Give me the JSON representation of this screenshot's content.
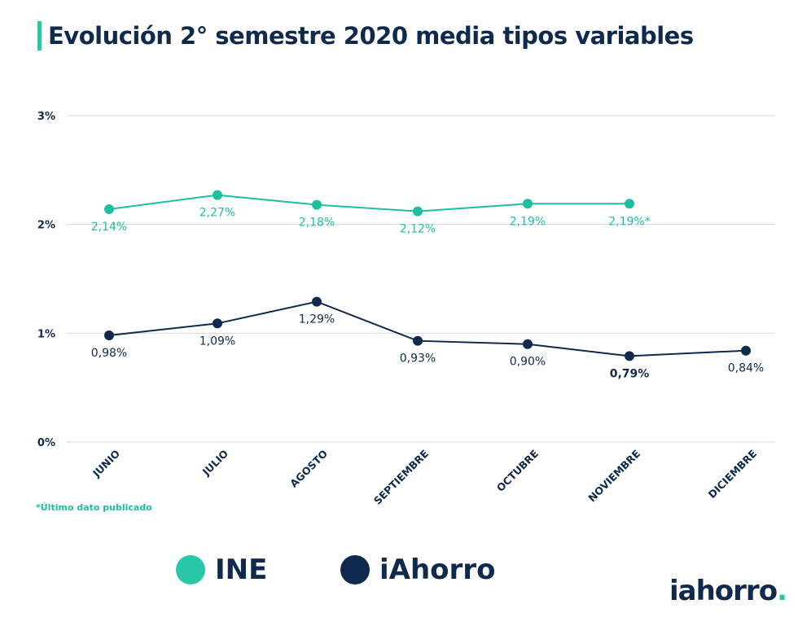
{
  "chart_data": {
    "type": "line",
    "title": "Evolución 2° semestre 2020 media tipos variables",
    "categories": [
      "JUNIO",
      "JULIO",
      "AGOSTO",
      "SEPTIEMBRE",
      "OCTUBRE",
      "NOVIEMBRE",
      "DICIEMBRE"
    ],
    "yticks": [
      "0%",
      "1%",
      "2%",
      "3%"
    ],
    "ylim": [
      0,
      3
    ],
    "grid": true,
    "legend_position": "bottom",
    "series": [
      {
        "name": "INE",
        "color": "#1dbf9f",
        "values": [
          2.14,
          2.27,
          2.18,
          2.12,
          2.19,
          2.19,
          null
        ],
        "labels": [
          "2,14%",
          "2,27%",
          "2,18%",
          "2,12%",
          "2,19%",
          "2,19%*",
          null
        ]
      },
      {
        "name": "iAhorro",
        "color": "#0f2a4d",
        "values": [
          0.98,
          1.09,
          1.29,
          0.93,
          0.9,
          0.79,
          0.84
        ],
        "labels": [
          "0,98%",
          "1,09%",
          "1,29%",
          "0,93%",
          "0,90%",
          "0,79%",
          "0,84%"
        ]
      }
    ],
    "footnote": "*Último dato publicado"
  },
  "logo": {
    "text": "iahorro",
    "dot": "."
  }
}
